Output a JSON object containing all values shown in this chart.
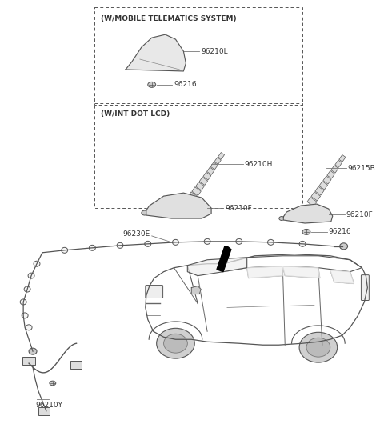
{
  "background_color": "#ffffff",
  "line_color": "#333333",
  "box1_label": "(W/MOBILE TELEMATICS SYSTEM)",
  "box2_label": "(W/INT DOT LCD)",
  "label_96210L": "96210L",
  "label_96216a": "96216",
  "label_96210H": "96210H",
  "label_96210F_a": "96210F",
  "label_96215B": "96215B",
  "label_96210F_b": "96210F",
  "label_96216b": "96216",
  "label_96230E": "96230E",
  "label_96210Y": "96210Y",
  "font_size_label": 6.5,
  "font_size_box": 6.5
}
